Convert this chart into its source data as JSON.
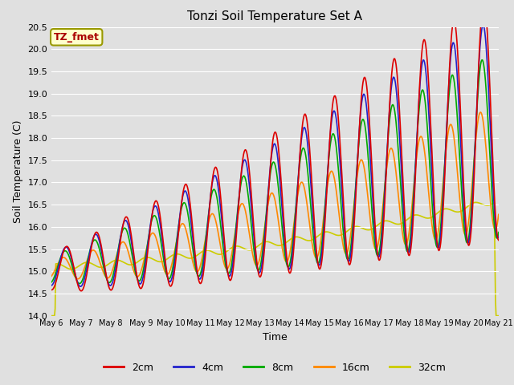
{
  "title": "Tonzi Soil Temperature Set A",
  "xlabel": "Time",
  "ylabel": "Soil Temperature (C)",
  "ylim": [
    14.0,
    20.5
  ],
  "background_color": "#e0e0e0",
  "plot_bg_color": "#e0e0e0",
  "grid_color": "white",
  "series": {
    "2cm": {
      "color": "#dd0000",
      "lw": 1.2
    },
    "4cm": {
      "color": "#2222cc",
      "lw": 1.2
    },
    "8cm": {
      "color": "#00aa00",
      "lw": 1.2
    },
    "16cm": {
      "color": "#ff8800",
      "lw": 1.2
    },
    "32cm": {
      "color": "#cccc00",
      "lw": 1.2
    }
  },
  "annotation": {
    "text": "TZ_fmet",
    "color": "#aa0000",
    "bg": "#ffffcc",
    "border": "#999900"
  },
  "n_days": 15,
  "start_day": 6,
  "samples_per_day": 48,
  "figsize": [
    6.4,
    4.8
  ],
  "dpi": 100
}
